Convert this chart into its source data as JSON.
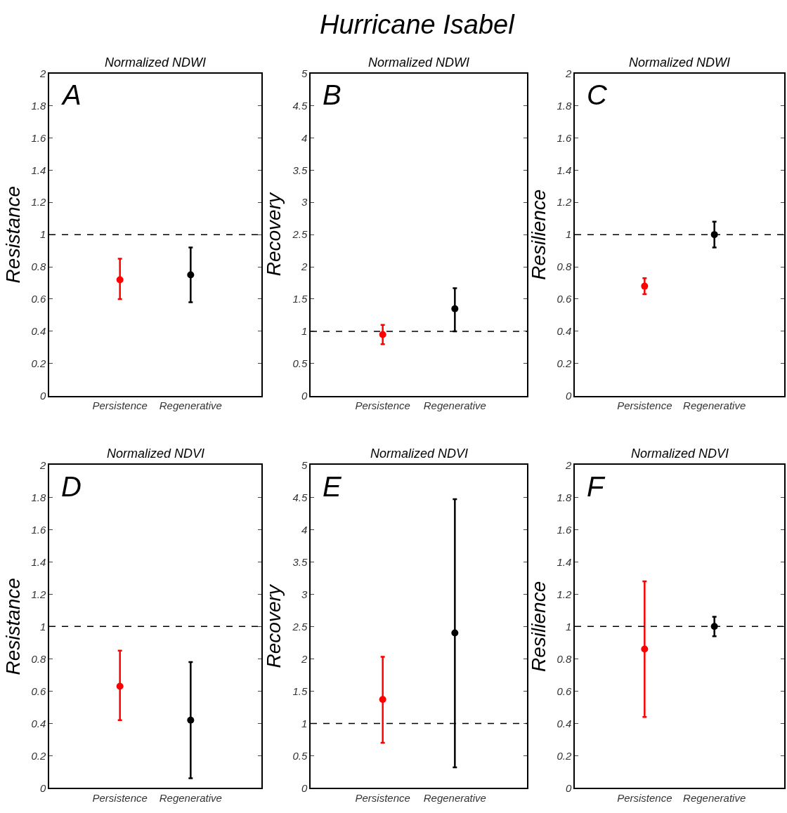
{
  "chart_data": [
    {
      "type": "scatter",
      "title": "Normalized NDWI",
      "ylabel": "Resistance",
      "categories": [
        "Persistence",
        "Regenerative"
      ],
      "values": [
        0.72,
        0.75
      ],
      "errors": [
        [
          0.6,
          0.85
        ],
        [
          0.58,
          0.92
        ]
      ],
      "colors": [
        "#ff0000",
        "#000000"
      ],
      "marker": "circle",
      "ylim": [
        0,
        2
      ],
      "yticks": [
        0,
        0.2,
        0.4,
        0.6,
        0.8,
        1,
        1.2,
        1.4,
        1.6,
        1.8,
        2
      ],
      "ref_lines": [
        {
          "axis": "y",
          "value": 1,
          "line_style": "dashed",
          "color": "#000000"
        }
      ],
      "annotations": [
        "Hurricane Isabel",
        "A"
      ]
    },
    {
      "type": "scatter",
      "title": "Normalized NDWI",
      "ylabel": "Recovery",
      "categories": [
        "Persistence",
        "Regenerative"
      ],
      "values": [
        0.95,
        1.35
      ],
      "errors": [
        [
          0.8,
          1.1
        ],
        [
          1.0,
          1.67
        ]
      ],
      "colors": [
        "#ff0000",
        "#000000"
      ],
      "marker": "circle",
      "ylim": [
        0,
        5
      ],
      "yticks": [
        0,
        0.5,
        1,
        1.5,
        2,
        2.5,
        3,
        3.5,
        4,
        4.5,
        5
      ],
      "ref_lines": [
        {
          "axis": "y",
          "value": 1,
          "line_style": "dashed",
          "color": "#000000"
        }
      ],
      "annotations": [
        "B"
      ]
    },
    {
      "type": "scatter",
      "title": "Normalized NDWI",
      "ylabel": "Resilience",
      "categories": [
        "Persistence",
        "Regenerative"
      ],
      "values": [
        0.68,
        1.0
      ],
      "errors": [
        [
          0.63,
          0.73
        ],
        [
          0.92,
          1.08
        ]
      ],
      "colors": [
        "#ff0000",
        "#000000"
      ],
      "marker": "circle",
      "ylim": [
        0,
        2
      ],
      "yticks": [
        0,
        0.2,
        0.4,
        0.6,
        0.8,
        1,
        1.2,
        1.4,
        1.6,
        1.8,
        2
      ],
      "ref_lines": [
        {
          "axis": "y",
          "value": 1,
          "line_style": "dashed",
          "color": "#000000"
        }
      ],
      "annotations": [
        "C"
      ]
    },
    {
      "type": "scatter",
      "title": "Normalized NDVI",
      "ylabel": "Resistance",
      "categories": [
        "Persistence",
        "Regenerative"
      ],
      "values": [
        0.63,
        0.42
      ],
      "errors": [
        [
          0.42,
          0.85
        ],
        [
          0.06,
          0.78
        ]
      ],
      "colors": [
        "#ff0000",
        "#000000"
      ],
      "marker": "circle",
      "ylim": [
        0,
        2
      ],
      "yticks": [
        0,
        0.2,
        0.4,
        0.6,
        0.8,
        1,
        1.2,
        1.4,
        1.6,
        1.8,
        2
      ],
      "ref_lines": [
        {
          "axis": "y",
          "value": 1,
          "line_style": "dashed",
          "color": "#000000"
        }
      ],
      "annotations": [
        "D"
      ]
    },
    {
      "type": "scatter",
      "title": "Normalized NDVI",
      "ylabel": "Recovery",
      "categories": [
        "Persistence",
        "Regenerative"
      ],
      "values": [
        1.37,
        2.4
      ],
      "errors": [
        [
          0.7,
          2.03
        ],
        [
          0.32,
          4.47
        ]
      ],
      "colors": [
        "#ff0000",
        "#000000"
      ],
      "marker": "circle",
      "ylim": [
        0,
        5
      ],
      "yticks": [
        0,
        0.5,
        1,
        1.5,
        2,
        2.5,
        3,
        3.5,
        4,
        4.5,
        5
      ],
      "ref_lines": [
        {
          "axis": "y",
          "value": 1,
          "line_style": "dashed",
          "color": "#000000"
        }
      ],
      "annotations": [
        "E"
      ]
    },
    {
      "type": "scatter",
      "title": "Normalized NDVI",
      "ylabel": "Resilience",
      "categories": [
        "Persistence",
        "Regenerative"
      ],
      "values": [
        0.86,
        1.0
      ],
      "errors": [
        [
          0.44,
          1.28
        ],
        [
          0.94,
          1.06
        ]
      ],
      "colors": [
        "#ff0000",
        "#000000"
      ],
      "marker": "circle",
      "ylim": [
        0,
        2
      ],
      "yticks": [
        0,
        0.2,
        0.4,
        0.6,
        0.8,
        1,
        1.2,
        1.4,
        1.6,
        1.8,
        2
      ],
      "ref_lines": [
        {
          "axis": "y",
          "value": 1,
          "line_style": "dashed",
          "color": "#000000"
        }
      ],
      "annotations": [
        "F"
      ]
    }
  ]
}
